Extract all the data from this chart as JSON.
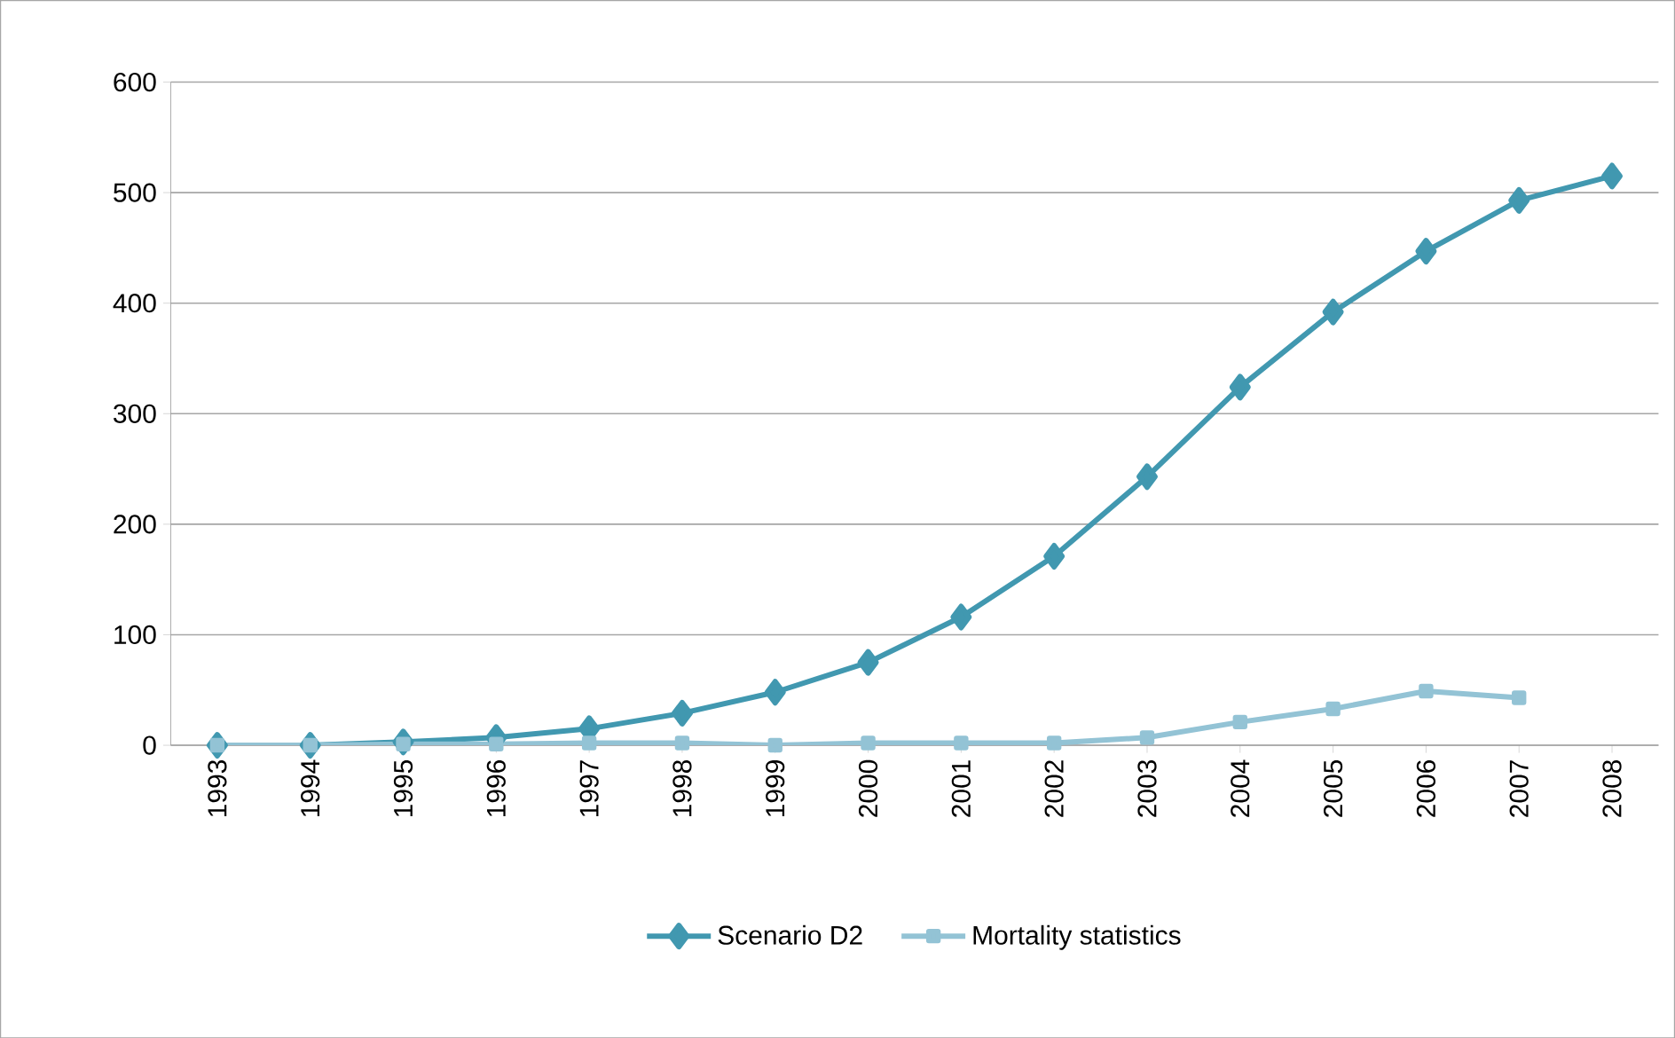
{
  "chart_data": {
    "type": "line",
    "categories": [
      "1993",
      "1994",
      "1995",
      "1996",
      "1997",
      "1998",
      "1999",
      "2000",
      "2001",
      "2002",
      "2003",
      "2004",
      "2005",
      "2006",
      "2007",
      "2008"
    ],
    "series": [
      {
        "name": "Scenario D2",
        "color": "#4198b0",
        "marker": "diamond",
        "values": [
          0,
          0,
          3,
          7,
          15,
          29,
          48,
          75,
          116,
          171,
          243,
          324,
          392,
          447,
          493,
          515
        ]
      },
      {
        "name": "Mortality statistics",
        "color": "#93c3d5",
        "marker": "square",
        "values": [
          0,
          0,
          1,
          1,
          2,
          2,
          0,
          2,
          2,
          2,
          7,
          21,
          33,
          49,
          43,
          null
        ]
      }
    ],
    "ylim": [
      0,
      600
    ],
    "yticks": [
      0,
      100,
      200,
      300,
      400,
      500,
      600
    ],
    "grid": "y",
    "legend": "bottom",
    "line_style": "solid"
  }
}
